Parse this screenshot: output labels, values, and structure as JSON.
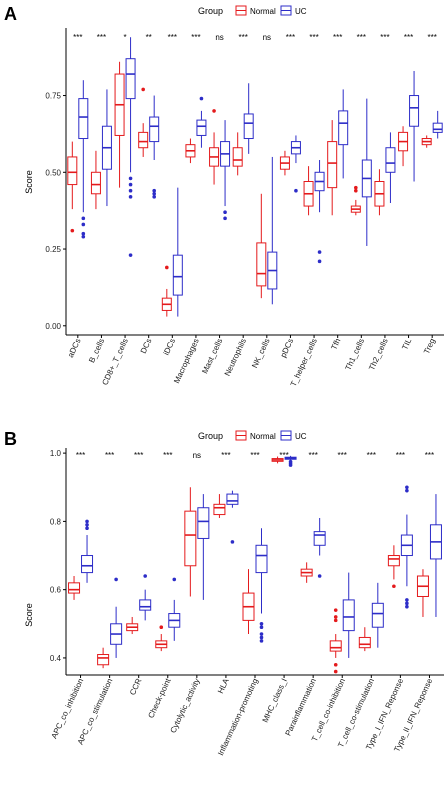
{
  "colors": {
    "normal": "#E41A1C",
    "uc": "#2D2DC8",
    "axis": "#000000"
  },
  "chart_data": [
    {
      "type": "boxplot",
      "panel": "A",
      "legend_title": "Group",
      "legend": [
        "Normal",
        "UC"
      ],
      "ylabel": "Score",
      "ylim": [
        -0.03,
        0.97
      ],
      "yticks": [
        0.0,
        0.25,
        0.5,
        0.75
      ],
      "ytick_labels": [
        "0.00",
        "0.25",
        "0.50",
        "0.75"
      ],
      "categories": [
        "aDCs",
        "B_cells",
        "CD8+_T_cells",
        "DCs",
        "iDCs",
        "Macrophages",
        "Mast_cells",
        "Neutrophils",
        "NK_cells",
        "pDCs",
        "T_helper_cells",
        "Tfh",
        "Th1_cells",
        "Th2_cells",
        "TIL",
        "Treg"
      ],
      "significance": [
        "***",
        "***",
        "*",
        "**",
        "***",
        "***",
        "ns",
        "***",
        "ns",
        "***",
        "***",
        "***",
        "***",
        "***",
        "***",
        "***"
      ],
      "series": [
        {
          "name": "Normal",
          "boxes": [
            {
              "min": 0.38,
              "q1": 0.46,
              "median": 0.5,
              "q3": 0.55,
              "max": 0.6,
              "outliers": [
                0.31
              ]
            },
            {
              "min": 0.38,
              "q1": 0.43,
              "median": 0.46,
              "q3": 0.5,
              "max": 0.57,
              "outliers": []
            },
            {
              "min": 0.45,
              "q1": 0.62,
              "median": 0.72,
              "q3": 0.82,
              "max": 0.86,
              "outliers": []
            },
            {
              "min": 0.55,
              "q1": 0.58,
              "median": 0.6,
              "q3": 0.63,
              "max": 0.66,
              "outliers": [
                0.77
              ]
            },
            {
              "min": 0.03,
              "q1": 0.05,
              "median": 0.07,
              "q3": 0.09,
              "max": 0.12,
              "outliers": [
                0.19
              ]
            },
            {
              "min": 0.53,
              "q1": 0.55,
              "median": 0.57,
              "q3": 0.59,
              "max": 0.61,
              "outliers": []
            },
            {
              "min": 0.46,
              "q1": 0.52,
              "median": 0.55,
              "q3": 0.58,
              "max": 0.63,
              "outliers": [
                0.7
              ]
            },
            {
              "min": 0.49,
              "q1": 0.52,
              "median": 0.54,
              "q3": 0.58,
              "max": 0.63,
              "outliers": []
            },
            {
              "min": 0.09,
              "q1": 0.13,
              "median": 0.17,
              "q3": 0.27,
              "max": 0.43,
              "outliers": []
            },
            {
              "min": 0.49,
              "q1": 0.51,
              "median": 0.53,
              "q3": 0.55,
              "max": 0.57,
              "outliers": []
            },
            {
              "min": 0.36,
              "q1": 0.39,
              "median": 0.43,
              "q3": 0.47,
              "max": 0.52,
              "outliers": []
            },
            {
              "min": 0.36,
              "q1": 0.45,
              "median": 0.53,
              "q3": 0.6,
              "max": 0.67,
              "outliers": []
            },
            {
              "min": 0.36,
              "q1": 0.37,
              "median": 0.38,
              "q3": 0.39,
              "max": 0.41,
              "outliers": [
                0.44,
                0.45
              ]
            },
            {
              "min": 0.36,
              "q1": 0.39,
              "median": 0.43,
              "q3": 0.47,
              "max": 0.51,
              "outliers": []
            },
            {
              "min": 0.52,
              "q1": 0.57,
              "median": 0.6,
              "q3": 0.63,
              "max": 0.65,
              "outliers": []
            },
            {
              "min": 0.58,
              "q1": 0.59,
              "median": 0.6,
              "q3": 0.61,
              "max": 0.62,
              "outliers": []
            }
          ]
        },
        {
          "name": "UC",
          "boxes": [
            {
              "min": 0.37,
              "q1": 0.61,
              "median": 0.68,
              "q3": 0.74,
              "max": 0.8,
              "outliers": [
                0.29,
                0.3,
                0.33,
                0.35
              ]
            },
            {
              "min": 0.39,
              "q1": 0.51,
              "median": 0.58,
              "q3": 0.65,
              "max": 0.77,
              "outliers": []
            },
            {
              "min": 0.5,
              "q1": 0.74,
              "median": 0.82,
              "q3": 0.87,
              "max": 0.94,
              "outliers": [
                0.23,
                0.42,
                0.44,
                0.46,
                0.48
              ]
            },
            {
              "min": 0.54,
              "q1": 0.6,
              "median": 0.65,
              "q3": 0.68,
              "max": 0.75,
              "outliers": [
                0.42,
                0.43,
                0.44
              ]
            },
            {
              "min": 0.03,
              "q1": 0.1,
              "median": 0.16,
              "q3": 0.23,
              "max": 0.45,
              "outliers": []
            },
            {
              "min": 0.58,
              "q1": 0.62,
              "median": 0.65,
              "q3": 0.67,
              "max": 0.7,
              "outliers": [
                0.74
              ]
            },
            {
              "min": 0.39,
              "q1": 0.52,
              "median": 0.56,
              "q3": 0.6,
              "max": 0.67,
              "outliers": [
                0.35,
                0.37
              ]
            },
            {
              "min": 0.56,
              "q1": 0.61,
              "median": 0.66,
              "q3": 0.69,
              "max": 0.79,
              "outliers": []
            },
            {
              "min": 0.07,
              "q1": 0.12,
              "median": 0.18,
              "q3": 0.24,
              "max": 0.55,
              "outliers": []
            },
            {
              "min": 0.53,
              "q1": 0.56,
              "median": 0.58,
              "q3": 0.6,
              "max": 0.62,
              "outliers": [
                0.44
              ]
            },
            {
              "min": 0.37,
              "q1": 0.44,
              "median": 0.47,
              "q3": 0.5,
              "max": 0.54,
              "outliers": [
                0.24,
                0.21
              ]
            },
            {
              "min": 0.48,
              "q1": 0.59,
              "median": 0.66,
              "q3": 0.7,
              "max": 0.77,
              "outliers": []
            },
            {
              "min": 0.26,
              "q1": 0.42,
              "median": 0.48,
              "q3": 0.54,
              "max": 0.74,
              "outliers": []
            },
            {
              "min": 0.4,
              "q1": 0.5,
              "median": 0.53,
              "q3": 0.58,
              "max": 0.63,
              "outliers": []
            },
            {
              "min": 0.47,
              "q1": 0.65,
              "median": 0.71,
              "q3": 0.75,
              "max": 0.83,
              "outliers": []
            },
            {
              "min": 0.61,
              "q1": 0.63,
              "median": 0.64,
              "q3": 0.66,
              "max": 0.7,
              "outliers": []
            }
          ]
        }
      ]
    },
    {
      "type": "boxplot",
      "panel": "B",
      "legend_title": "Group",
      "legend": [
        "Normal",
        "UC"
      ],
      "ylabel": "Score",
      "ylim": [
        0.35,
        1.015
      ],
      "yticks": [
        0.4,
        0.6,
        0.8,
        1.0
      ],
      "ytick_labels": [
        "0.4",
        "0.6",
        "0.8",
        "1.0"
      ],
      "categories": [
        "APC_co_inhibition",
        "APC_co_stimulation",
        "CCR",
        "Check-point",
        "Cytolytic_activity",
        "HLA",
        "Inflammation-promoting",
        "MHC_class_I",
        "Parainflammation",
        "T_cell_co-inhibition",
        "T_cell_co-stimulation",
        "Type_I_IFN_Reponse",
        "Type_II_IFN_Reponse"
      ],
      "significance": [
        "***",
        "***",
        "***",
        "***",
        "ns",
        "***",
        "***",
        "***",
        "***",
        "***",
        "***",
        "***",
        "***"
      ],
      "series": [
        {
          "name": "Normal",
          "boxes": [
            {
              "min": 0.57,
              "q1": 0.59,
              "median": 0.6,
              "q3": 0.62,
              "max": 0.64,
              "outliers": []
            },
            {
              "min": 0.37,
              "q1": 0.38,
              "median": 0.4,
              "q3": 0.41,
              "max": 0.43,
              "outliers": []
            },
            {
              "min": 0.47,
              "q1": 0.48,
              "median": 0.49,
              "q3": 0.5,
              "max": 0.52,
              "outliers": []
            },
            {
              "min": 0.42,
              "q1": 0.43,
              "median": 0.44,
              "q3": 0.45,
              "max": 0.47,
              "outliers": [
                0.49
              ]
            },
            {
              "min": 0.58,
              "q1": 0.67,
              "median": 0.76,
              "q3": 0.83,
              "max": 0.9,
              "outliers": []
            },
            {
              "min": 0.81,
              "q1": 0.82,
              "median": 0.84,
              "q3": 0.85,
              "max": 0.88,
              "outliers": []
            },
            {
              "min": 0.47,
              "q1": 0.51,
              "median": 0.55,
              "q3": 0.59,
              "max": 0.66,
              "outliers": []
            },
            {
              "min": 0.97,
              "q1": 0.976,
              "median": 0.98,
              "q3": 0.984,
              "max": 0.99,
              "outliers": []
            },
            {
              "min": 0.62,
              "q1": 0.64,
              "median": 0.65,
              "q3": 0.66,
              "max": 0.68,
              "outliers": []
            },
            {
              "min": 0.4,
              "q1": 0.42,
              "median": 0.43,
              "q3": 0.45,
              "max": 0.47,
              "outliers": [
                0.36,
                0.38,
                0.51,
                0.52,
                0.54
              ]
            },
            {
              "min": 0.42,
              "q1": 0.43,
              "median": 0.44,
              "q3": 0.46,
              "max": 0.49,
              "outliers": []
            },
            {
              "min": 0.63,
              "q1": 0.67,
              "median": 0.69,
              "q3": 0.7,
              "max": 0.73,
              "outliers": [
                0.61
              ]
            },
            {
              "min": 0.52,
              "q1": 0.58,
              "median": 0.61,
              "q3": 0.64,
              "max": 0.66,
              "outliers": []
            }
          ]
        },
        {
          "name": "UC",
          "boxes": [
            {
              "min": 0.62,
              "q1": 0.65,
              "median": 0.67,
              "q3": 0.7,
              "max": 0.76,
              "outliers": [
                0.78,
                0.79,
                0.8
              ]
            },
            {
              "min": 0.4,
              "q1": 0.44,
              "median": 0.47,
              "q3": 0.5,
              "max": 0.55,
              "outliers": [
                0.63
              ]
            },
            {
              "min": 0.51,
              "q1": 0.54,
              "median": 0.55,
              "q3": 0.57,
              "max": 0.6,
              "outliers": [
                0.64
              ]
            },
            {
              "min": 0.45,
              "q1": 0.49,
              "median": 0.51,
              "q3": 0.53,
              "max": 0.57,
              "outliers": [
                0.63
              ]
            },
            {
              "min": 0.57,
              "q1": 0.75,
              "median": 0.8,
              "q3": 0.84,
              "max": 0.88,
              "outliers": []
            },
            {
              "min": 0.84,
              "q1": 0.85,
              "median": 0.86,
              "q3": 0.88,
              "max": 0.89,
              "outliers": [
                0.74
              ]
            },
            {
              "min": 0.53,
              "q1": 0.65,
              "median": 0.7,
              "q3": 0.73,
              "max": 0.78,
              "outliers": [
                0.45,
                0.46,
                0.47,
                0.49,
                0.5
              ]
            },
            {
              "min": 0.975,
              "q1": 0.982,
              "median": 0.985,
              "q3": 0.988,
              "max": 0.992,
              "outliers": [
                0.965,
                0.97,
                0.975
              ]
            },
            {
              "min": 0.7,
              "q1": 0.73,
              "median": 0.76,
              "q3": 0.77,
              "max": 0.81,
              "outliers": [
                0.64
              ]
            },
            {
              "min": 0.4,
              "q1": 0.48,
              "median": 0.52,
              "q3": 0.57,
              "max": 0.65,
              "outliers": []
            },
            {
              "min": 0.43,
              "q1": 0.49,
              "median": 0.53,
              "q3": 0.56,
              "max": 0.62,
              "outliers": []
            },
            {
              "min": 0.61,
              "q1": 0.7,
              "median": 0.73,
              "q3": 0.76,
              "max": 0.82,
              "outliers": [
                0.55,
                0.56,
                0.57,
                0.89,
                0.9
              ]
            },
            {
              "min": 0.52,
              "q1": 0.69,
              "median": 0.74,
              "q3": 0.79,
              "max": 0.88,
              "outliers": []
            }
          ]
        }
      ]
    }
  ]
}
